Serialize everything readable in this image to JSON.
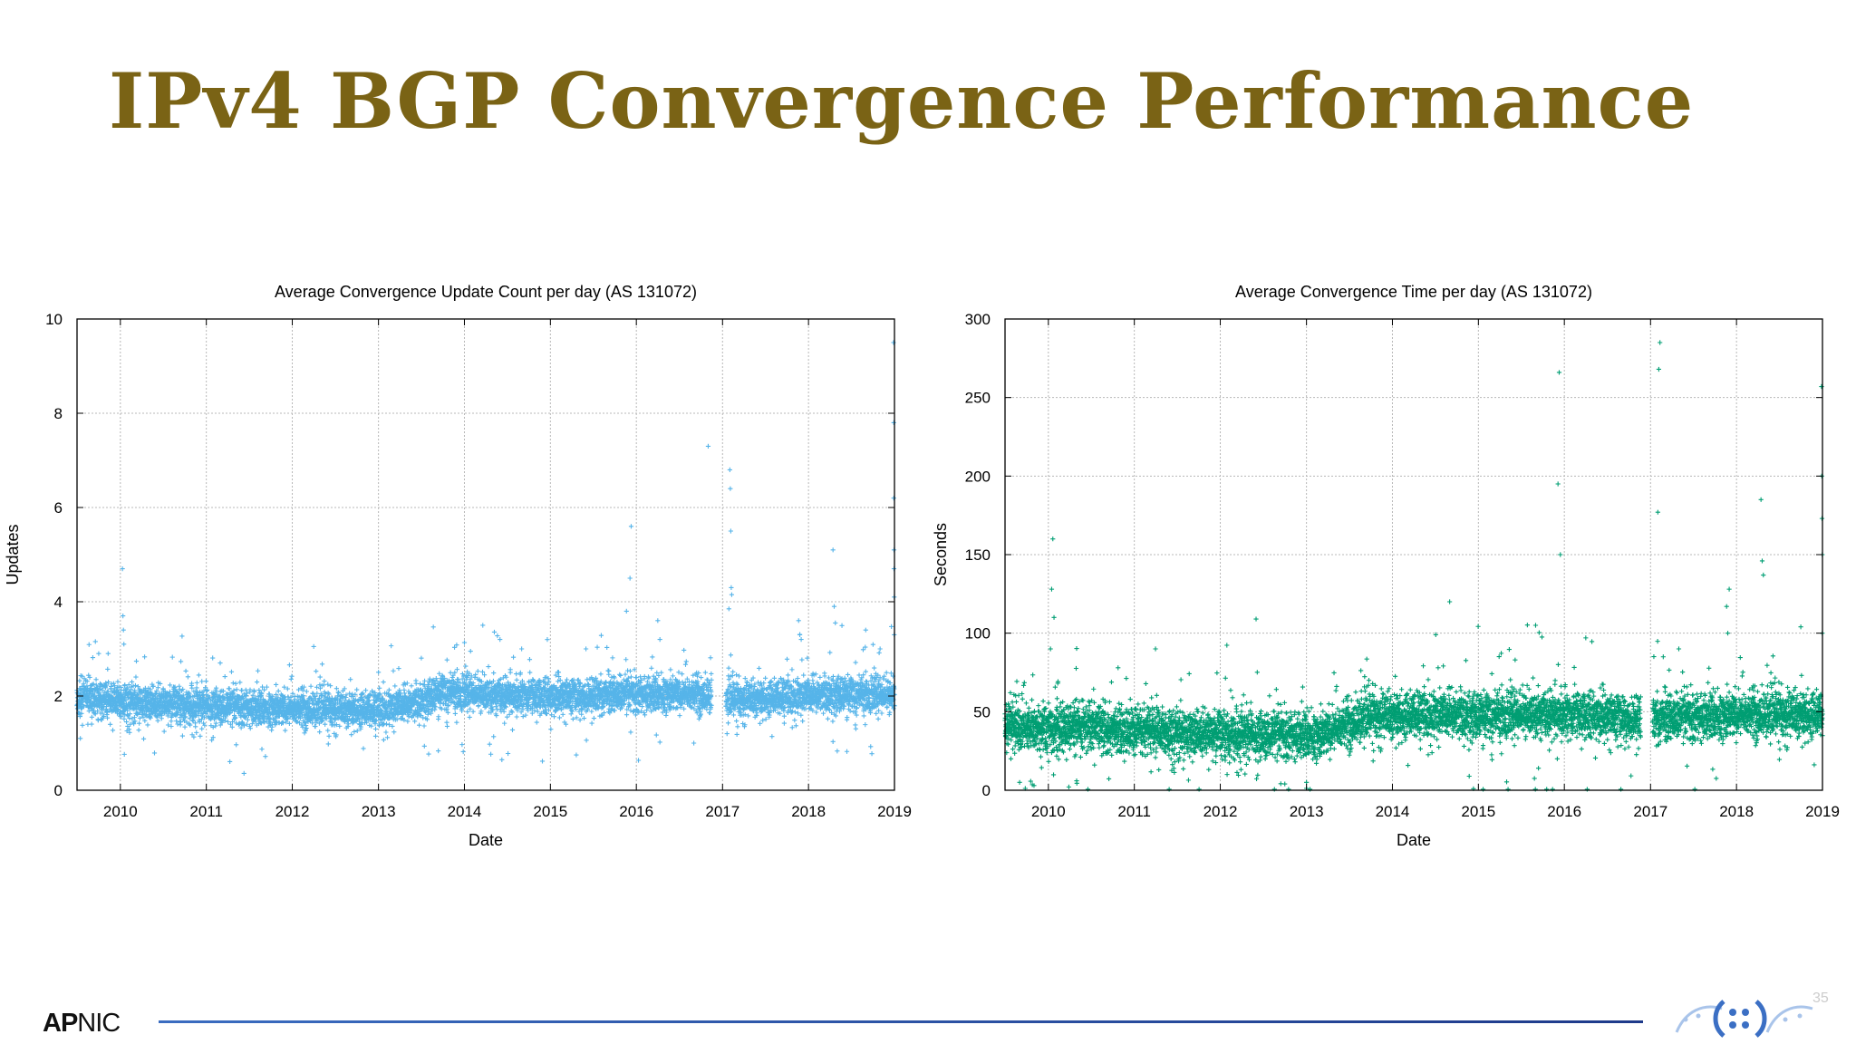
{
  "slide": {
    "title": "IPv4 BGP Convergence Performance",
    "page_number": "35",
    "footer_logo_bold": "AP",
    "footer_logo_light": "NIC"
  },
  "colors": {
    "title": "#7a6315",
    "series_left": "#56b4e9",
    "series_right": "#009e73",
    "footer_line": "#2c4fa3"
  },
  "chart_data": [
    {
      "type": "scatter",
      "title": "Average Convergence Update Count per day (AS 131072)",
      "xlabel": "Date",
      "ylabel": "Updates",
      "xlim": [
        "2009-07-01",
        "2019-01-01"
      ],
      "ylim": [
        0,
        10
      ],
      "yticks": [
        0,
        2,
        4,
        6,
        8,
        10
      ],
      "xticks": [
        "2010",
        "2011",
        "2012",
        "2013",
        "2014",
        "2015",
        "2016",
        "2017",
        "2018",
        "2019"
      ],
      "grid": true,
      "marker": "+",
      "gap": [
        "2016-11-15",
        "2017-01-15"
      ],
      "baseline": [
        {
          "x": "2009-07-01",
          "y": 1.95
        },
        {
          "x": "2010-06-01",
          "y": 1.85
        },
        {
          "x": "2011-01-01",
          "y": 1.78
        },
        {
          "x": "2012-01-01",
          "y": 1.72
        },
        {
          "x": "2013-01-01",
          "y": 1.7
        },
        {
          "x": "2013-06-01",
          "y": 1.85
        },
        {
          "x": "2013-10-01",
          "y": 2.1
        },
        {
          "x": "2014-06-01",
          "y": 2.0
        },
        {
          "x": "2015-06-01",
          "y": 2.0
        },
        {
          "x": "2016-06-01",
          "y": 2.05
        },
        {
          "x": "2016-11-15",
          "y": 2.0
        },
        {
          "x": "2017-01-15",
          "y": 1.9
        },
        {
          "x": "2018-06-01",
          "y": 2.05
        },
        {
          "x": "2019-01-01",
          "y": 2.0
        }
      ],
      "spread": 0.18,
      "outliers": [
        {
          "x": "2010-01-10",
          "y": 4.7
        },
        {
          "x": "2010-01-12",
          "y": 3.7
        },
        {
          "x": "2010-01-14",
          "y": 3.4
        },
        {
          "x": "2010-01-16",
          "y": 3.1
        },
        {
          "x": "2009-10-01",
          "y": 2.9
        },
        {
          "x": "2009-11-10",
          "y": 2.9
        },
        {
          "x": "2012-04-01",
          "y": 3.05
        },
        {
          "x": "2011-03-01",
          "y": 2.7
        },
        {
          "x": "2014-06-01",
          "y": 3.2
        },
        {
          "x": "2014-09-01",
          "y": 3.0
        },
        {
          "x": "2015-06-01",
          "y": 3.0
        },
        {
          "x": "2015-12-10",
          "y": 5.6
        },
        {
          "x": "2015-12-05",
          "y": 4.5
        },
        {
          "x": "2015-11-20",
          "y": 3.8
        },
        {
          "x": "2016-04-01",
          "y": 3.6
        },
        {
          "x": "2016-04-10",
          "y": 3.2
        },
        {
          "x": "2016-11-01",
          "y": 7.3
        },
        {
          "x": "2017-02-01",
          "y": 6.8
        },
        {
          "x": "2017-02-03",
          "y": 6.4
        },
        {
          "x": "2017-02-05",
          "y": 5.5
        },
        {
          "x": "2017-02-07",
          "y": 4.3
        },
        {
          "x": "2017-02-09",
          "y": 4.15
        },
        {
          "x": "2017-01-28",
          "y": 3.85
        },
        {
          "x": "2017-11-20",
          "y": 3.6
        },
        {
          "x": "2017-11-25",
          "y": 3.3
        },
        {
          "x": "2017-12-01",
          "y": 3.2
        },
        {
          "x": "2018-04-15",
          "y": 5.1
        },
        {
          "x": "2018-04-20",
          "y": 3.9
        },
        {
          "x": "2018-04-25",
          "y": 3.55
        },
        {
          "x": "2018-09-01",
          "y": 3.4
        },
        {
          "x": "2018-11-01",
          "y": 3.0
        },
        {
          "x": "2018-12-28",
          "y": 9.5
        },
        {
          "x": "2018-12-29",
          "y": 7.8
        },
        {
          "x": "2018-12-29",
          "y": 6.2
        },
        {
          "x": "2018-12-30",
          "y": 5.1
        },
        {
          "x": "2018-12-30",
          "y": 4.7
        },
        {
          "x": "2018-12-31",
          "y": 4.1
        },
        {
          "x": "2018-12-31",
          "y": 3.3
        },
        {
          "x": "2016-09-01",
          "y": 1.0
        },
        {
          "x": "2017-01-20",
          "y": 1.2
        },
        {
          "x": "2009-07-15",
          "y": 1.1
        }
      ]
    },
    {
      "type": "scatter",
      "title": "Average Convergence Time per day (AS 131072)",
      "xlabel": "Date",
      "ylabel": "Seconds",
      "xlim": [
        "2009-07-01",
        "2019-01-01"
      ],
      "ylim": [
        0,
        300
      ],
      "yticks": [
        0,
        50,
        100,
        150,
        200,
        250,
        300
      ],
      "xticks": [
        "2010",
        "2011",
        "2012",
        "2013",
        "2014",
        "2015",
        "2016",
        "2017",
        "2018",
        "2019"
      ],
      "grid": true,
      "marker": "+",
      "gap": [
        "2016-11-20",
        "2017-01-10"
      ],
      "baseline": [
        {
          "x": "2009-07-01",
          "y": 40
        },
        {
          "x": "2010-06-01",
          "y": 40
        },
        {
          "x": "2011-06-01",
          "y": 37
        },
        {
          "x": "2012-06-01",
          "y": 35
        },
        {
          "x": "2013-03-01",
          "y": 35
        },
        {
          "x": "2013-10-01",
          "y": 47
        },
        {
          "x": "2014-06-01",
          "y": 48
        },
        {
          "x": "2015-06-01",
          "y": 48
        },
        {
          "x": "2016-06-01",
          "y": 48
        },
        {
          "x": "2016-11-20",
          "y": 45
        },
        {
          "x": "2017-01-10",
          "y": 45
        },
        {
          "x": "2018-01-01",
          "y": 48
        },
        {
          "x": "2019-01-01",
          "y": 48
        }
      ],
      "spread": 7,
      "outliers": [
        {
          "x": "2010-01-20",
          "y": 160
        },
        {
          "x": "2010-01-15",
          "y": 128
        },
        {
          "x": "2010-01-25",
          "y": 110
        },
        {
          "x": "2010-01-10",
          "y": 90
        },
        {
          "x": "2011-04-01",
          "y": 90
        },
        {
          "x": "2012-06-01",
          "y": 109
        },
        {
          "x": "2014-09-01",
          "y": 120
        },
        {
          "x": "2015-09-01",
          "y": 105
        },
        {
          "x": "2015-12-10",
          "y": 266
        },
        {
          "x": "2015-12-05",
          "y": 195
        },
        {
          "x": "2015-12-15",
          "y": 150
        },
        {
          "x": "2016-04-01",
          "y": 97
        },
        {
          "x": "2017-02-10",
          "y": 285
        },
        {
          "x": "2017-02-05",
          "y": 268
        },
        {
          "x": "2017-02-01",
          "y": 177
        },
        {
          "x": "2017-05-01",
          "y": 90
        },
        {
          "x": "2017-12-01",
          "y": 128
        },
        {
          "x": "2017-11-20",
          "y": 117
        },
        {
          "x": "2017-11-25",
          "y": 100
        },
        {
          "x": "2018-04-15",
          "y": 185
        },
        {
          "x": "2018-04-20",
          "y": 146
        },
        {
          "x": "2018-04-25",
          "y": 137
        },
        {
          "x": "2018-10-01",
          "y": 104
        },
        {
          "x": "2018-12-28",
          "y": 257
        },
        {
          "x": "2018-12-29",
          "y": 200
        },
        {
          "x": "2018-12-30",
          "y": 173
        },
        {
          "x": "2018-12-31",
          "y": 150
        },
        {
          "x": "2018-12-31",
          "y": 100
        },
        {
          "x": "2009-09-01",
          "y": 5
        },
        {
          "x": "2009-11-01",
          "y": 3
        },
        {
          "x": "2010-05-01",
          "y": 6
        },
        {
          "x": "2012-10-01",
          "y": 4
        },
        {
          "x": "2013-01-01",
          "y": 5
        }
      ]
    }
  ]
}
